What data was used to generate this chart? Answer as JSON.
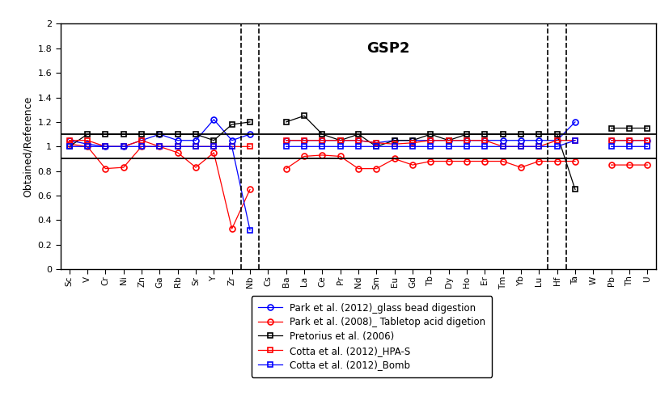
{
  "title": "GSP2",
  "ylabel": "Obtained/Reference",
  "ylim": [
    0,
    2.0
  ],
  "yticks": [
    0,
    0.2,
    0.4,
    0.6,
    0.8,
    1.0,
    1.2,
    1.4,
    1.6,
    1.8,
    2
  ],
  "hline_upper": 1.1,
  "hline_lower": 0.9,
  "elements": [
    "Sc",
    "V",
    "Cr",
    "Ni",
    "Zn",
    "Ga",
    "Rb",
    "Sr",
    "Y",
    "Zr",
    "Nb",
    "Cs",
    "Ba",
    "La",
    "Ce",
    "Pr",
    "Nd",
    "Sm",
    "Eu",
    "Gd",
    "Tb",
    "Dy",
    "Ho",
    "Er",
    "Tm",
    "Yb",
    "Lu",
    "Hf",
    "Ta",
    "W",
    "Pb",
    "Th",
    "U"
  ],
  "vlines": [
    9.5,
    10.5,
    26.5,
    27.5
  ],
  "park2012": [
    1.05,
    1.02,
    1.0,
    1.0,
    1.05,
    1.1,
    1.05,
    1.05,
    1.22,
    1.05,
    1.1,
    null,
    1.05,
    1.05,
    1.05,
    1.05,
    1.05,
    1.03,
    1.05,
    1.05,
    1.05,
    1.05,
    1.05,
    1.05,
    1.05,
    1.05,
    1.05,
    1.05,
    1.2,
    null,
    1.05,
    1.05,
    1.05
  ],
  "park2008": [
    1.02,
    1.0,
    0.82,
    0.83,
    1.0,
    1.0,
    0.95,
    0.83,
    0.95,
    0.33,
    0.65,
    null,
    0.82,
    0.92,
    0.93,
    0.92,
    0.82,
    0.82,
    0.9,
    0.85,
    0.88,
    0.88,
    0.88,
    0.88,
    0.88,
    0.83,
    0.88,
    0.88,
    0.88,
    null,
    0.85,
    0.85,
    0.85
  ],
  "pretorius": [
    1.0,
    1.1,
    1.1,
    1.1,
    1.1,
    1.1,
    1.1,
    1.1,
    1.05,
    1.18,
    1.2,
    null,
    1.2,
    1.25,
    1.1,
    1.05,
    1.1,
    1.0,
    1.05,
    1.05,
    1.1,
    1.05,
    1.1,
    1.1,
    1.1,
    1.1,
    1.1,
    1.1,
    0.65,
    null,
    1.15,
    1.15,
    1.15
  ],
  "cotta_hpas": [
    1.05,
    1.05,
    1.0,
    1.0,
    1.05,
    1.0,
    1.0,
    1.0,
    1.0,
    1.0,
    1.0,
    null,
    1.05,
    1.05,
    1.05,
    1.05,
    1.05,
    1.03,
    1.02,
    1.03,
    1.05,
    1.05,
    1.05,
    1.05,
    1.0,
    1.0,
    1.0,
    1.05,
    1.05,
    null,
    1.05,
    1.05,
    1.05
  ],
  "cotta_bomb": [
    1.0,
    1.0,
    1.0,
    1.0,
    1.0,
    1.0,
    1.0,
    1.0,
    1.0,
    1.0,
    0.32,
    null,
    1.0,
    1.0,
    1.0,
    1.0,
    1.0,
    1.0,
    1.0,
    1.0,
    1.0,
    1.0,
    1.0,
    1.0,
    1.0,
    1.0,
    1.0,
    1.0,
    1.05,
    null,
    1.0,
    1.0,
    1.0
  ],
  "legend_labels": [
    "Park et al. (2012)_glass bead digestion",
    "Park et al. (2008)_ Tabletop acid digetion",
    "Pretorius et al. (2006)",
    "Cotta et al. (2012)_HPA-S",
    "Cotta et al. (2012)_Bomb"
  ],
  "background_color": "#ffffff"
}
